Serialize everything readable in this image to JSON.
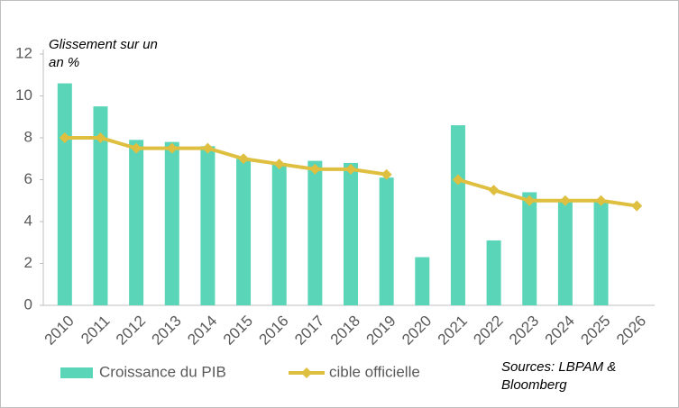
{
  "chart_data": {
    "type": "bar-line",
    "ylabel": "Glissement sur un an %",
    "source": "Sources: LBPAM & Bloomberg",
    "categories": [
      "2010",
      "2011",
      "2012",
      "2013",
      "2014",
      "2015",
      "2016",
      "2017",
      "2018",
      "2019",
      "2020",
      "2021",
      "2022",
      "2023",
      "2024",
      "2025",
      "2026"
    ],
    "series": [
      {
        "name": "Croissance du PIB",
        "type": "bar",
        "color": "#5ad5b8",
        "values": [
          10.6,
          9.5,
          7.9,
          7.8,
          7.6,
          7.0,
          6.8,
          6.9,
          6.8,
          6.1,
          2.3,
          8.6,
          3.1,
          5.4,
          5.0,
          5.0,
          null
        ]
      },
      {
        "name": "cible officielle",
        "type": "line",
        "color": "#dfbf3f",
        "values": [
          8,
          8,
          7.5,
          7.5,
          7.5,
          7,
          6.75,
          6.5,
          6.5,
          6.25,
          null,
          6,
          5.5,
          5,
          5,
          5,
          4.75
        ]
      }
    ],
    "ylim": [
      0,
      12
    ],
    "yticks": [
      0,
      2,
      4,
      6,
      8,
      10,
      12
    ]
  }
}
